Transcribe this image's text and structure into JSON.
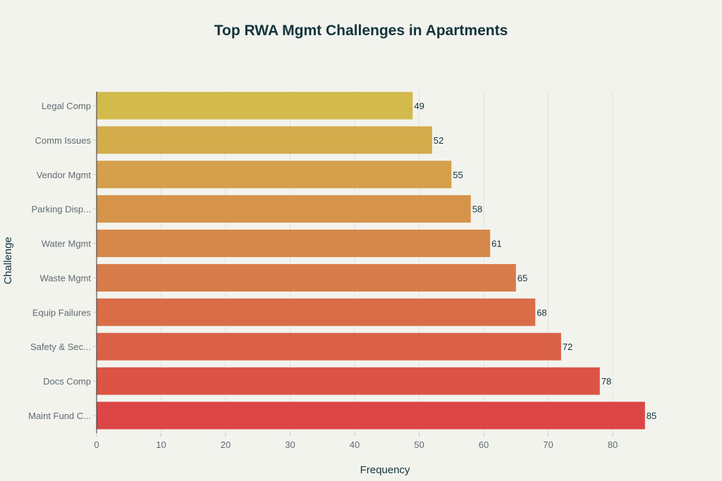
{
  "chart_data": {
    "type": "bar",
    "orientation": "horizontal",
    "title": "Top RWA Mgmt Challenges in Apartments",
    "xlabel": "Frequency",
    "ylabel": "Challenge",
    "categories": [
      "Legal Comp",
      "Comm Issues",
      "Vendor Mgmt",
      "Parking Disp...",
      "Water Mgmt",
      "Waste Mgmt",
      "Equip Failures",
      "Safety & Sec...",
      "Docs Comp",
      "Maint Fund C..."
    ],
    "values": [
      49,
      52,
      55,
      58,
      61,
      65,
      68,
      72,
      78,
      85
    ],
    "colors": [
      "#D2BA4C",
      "#D3AC4C",
      "#D4A04B",
      "#D5944A",
      "#D6884A",
      "#D87B4A",
      "#D96D48",
      "#DA6148",
      "#DB5446",
      "#DC4646"
    ],
    "xticks": [
      0,
      10,
      20,
      30,
      40,
      50,
      60,
      70,
      80
    ],
    "xlim": [
      0,
      89.5
    ],
    "grid": true,
    "data_labels": true
  }
}
